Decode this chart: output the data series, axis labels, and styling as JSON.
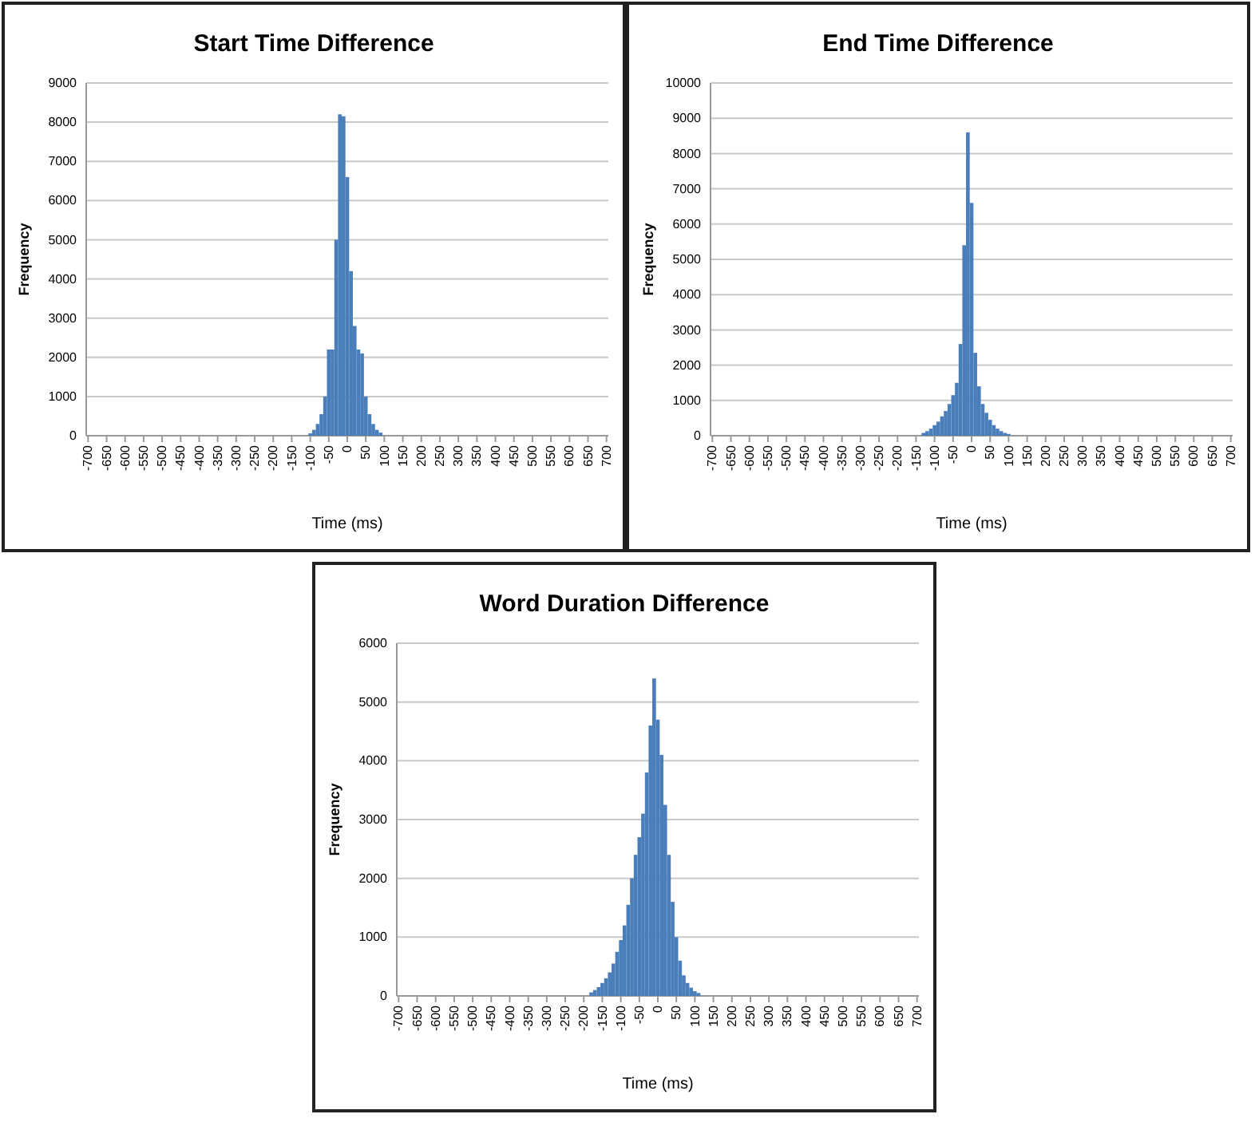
{
  "chart_data": [
    {
      "type": "histogram",
      "title": "Start Time Difference",
      "xlabel": "Time (ms)",
      "ylabel": "Frequency",
      "color": "#4a7ebb",
      "grid": "y",
      "xlim": [
        -705,
        705
      ],
      "ylim": [
        0,
        9000
      ],
      "yticks": [
        0,
        1000,
        2000,
        3000,
        4000,
        5000,
        6000,
        7000,
        8000,
        9000
      ],
      "xticks": [
        -700,
        -650,
        -600,
        -550,
        -500,
        -450,
        -400,
        -350,
        -300,
        -250,
        -200,
        -150,
        -100,
        -50,
        0,
        50,
        100,
        150,
        200,
        250,
        300,
        350,
        400,
        450,
        500,
        550,
        600,
        650,
        700
      ],
      "bins": [
        -105,
        -95,
        -85,
        -75,
        -65,
        -55,
        -45,
        -35,
        -25,
        -15,
        -5,
        5,
        15,
        25,
        35,
        45,
        55,
        65,
        75,
        85,
        95
      ],
      "values": [
        60,
        150,
        300,
        550,
        1000,
        2200,
        2200,
        5000,
        8200,
        8150,
        6600,
        4200,
        2800,
        2200,
        2100,
        1000,
        550,
        300,
        150,
        80
      ]
    },
    {
      "type": "histogram",
      "title": "End Time Difference",
      "xlabel": "Time (ms)",
      "ylabel": "Frequency",
      "color": "#4a7ebb",
      "grid": "y",
      "xlim": [
        -705,
        705
      ],
      "ylim": [
        0,
        10000
      ],
      "yticks": [
        0,
        1000,
        2000,
        3000,
        4000,
        5000,
        6000,
        7000,
        8000,
        9000,
        10000
      ],
      "xticks": [
        -700,
        -650,
        -600,
        -550,
        -500,
        -450,
        -400,
        -350,
        -300,
        -250,
        -200,
        -150,
        -100,
        -50,
        0,
        50,
        100,
        150,
        200,
        250,
        300,
        350,
        400,
        450,
        500,
        550,
        600,
        650,
        700
      ],
      "bins": [
        -135,
        -125,
        -115,
        -105,
        -95,
        -85,
        -75,
        -65,
        -55,
        -45,
        -35,
        -25,
        -15,
        -5,
        5,
        15,
        25,
        35,
        45,
        55,
        65,
        75,
        85,
        95,
        105
      ],
      "values": [
        80,
        130,
        200,
        300,
        400,
        550,
        700,
        900,
        1150,
        1500,
        2600,
        5400,
        8600,
        6600,
        2350,
        1400,
        900,
        650,
        450,
        300,
        200,
        130,
        80,
        50
      ]
    },
    {
      "type": "histogram",
      "title": "Word Duration Difference",
      "xlabel": "Time (ms)",
      "ylabel": "Frequency",
      "color": "#4a7ebb",
      "grid": "y",
      "xlim": [
        -705,
        705
      ],
      "ylim": [
        0,
        6000
      ],
      "yticks": [
        0,
        1000,
        2000,
        3000,
        4000,
        5000,
        6000
      ],
      "xticks": [
        -700,
        -650,
        -600,
        -550,
        -500,
        -450,
        -400,
        -350,
        -300,
        -250,
        -200,
        -150,
        -100,
        -50,
        0,
        50,
        100,
        150,
        200,
        250,
        300,
        350,
        400,
        450,
        500,
        550,
        600,
        650,
        700
      ],
      "bins": [
        -185,
        -175,
        -165,
        -155,
        -145,
        -135,
        -125,
        -115,
        -105,
        -95,
        -85,
        -75,
        -65,
        -55,
        -45,
        -35,
        -25,
        -15,
        -5,
        5,
        15,
        25,
        35,
        45,
        55,
        65,
        75,
        85,
        95,
        105,
        115
      ],
      "values": [
        60,
        100,
        150,
        220,
        300,
        400,
        550,
        750,
        950,
        1200,
        1550,
        2000,
        2400,
        2700,
        3100,
        3800,
        4600,
        5400,
        4700,
        4100,
        3250,
        2400,
        1600,
        1000,
        600,
        350,
        220,
        140,
        80,
        50
      ]
    }
  ]
}
